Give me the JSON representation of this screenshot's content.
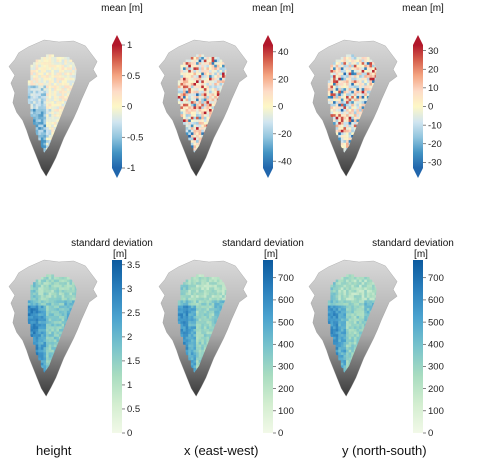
{
  "column_labels": [
    "height",
    "x (east-west)",
    "y (north-south)"
  ],
  "colors": {
    "diverging": [
      "#2166ac",
      "#4393c3",
      "#92c5de",
      "#d1e5f0",
      "#fdf7c6",
      "#fddbc7",
      "#f4a582",
      "#d6604d",
      "#b2182b"
    ],
    "sequential": [
      "#f2f9e8",
      "#d3eed0",
      "#a8dcc0",
      "#78c3cc",
      "#4ba3cf",
      "#2a7fbc",
      "#0c5a9e"
    ],
    "map_background_light": "#d9d9d9",
    "map_background_dark": "#3a3a3a"
  },
  "chart_data": [
    {
      "type": "heatmap",
      "title": "mean [m]",
      "colormap": "diverging",
      "range": [
        -1,
        1
      ],
      "ticks": [
        -1,
        -0.5,
        0,
        0.5,
        1
      ],
      "tick_labels": [
        "-1",
        "-0.5",
        "0",
        "0.5",
        "1"
      ],
      "variable": "height"
    },
    {
      "type": "heatmap",
      "title": "mean [m]",
      "colormap": "diverging",
      "range": [
        -45,
        45
      ],
      "ticks": [
        -40,
        -20,
        0,
        20,
        40
      ],
      "tick_labels": [
        "-40",
        "-20",
        "0",
        "20",
        "40"
      ],
      "variable": "x (east-west)"
    },
    {
      "type": "heatmap",
      "title": "mean [m]",
      "colormap": "diverging",
      "range": [
        -33,
        33
      ],
      "ticks": [
        -30,
        -20,
        -10,
        0,
        10,
        20,
        30
      ],
      "tick_labels": [
        "-30",
        "-20",
        "-10",
        "0",
        "10",
        "20",
        "30"
      ],
      "variable": "y (north-south)"
    },
    {
      "type": "heatmap",
      "title": "standard deviation",
      "title_line2": "[m]",
      "colormap": "sequential",
      "range": [
        0,
        3.6
      ],
      "ticks": [
        0,
        0.5,
        1,
        1.5,
        2,
        2.5,
        3,
        3.5
      ],
      "tick_labels": [
        "0",
        "0.5",
        "1",
        "1.5",
        "2",
        "2.5",
        "3",
        "3.5"
      ],
      "variable": "height"
    },
    {
      "type": "heatmap",
      "title": "standard deviation",
      "title_line2": "[m]",
      "colormap": "sequential",
      "range": [
        0,
        780
      ],
      "ticks": [
        0,
        100,
        200,
        300,
        400,
        500,
        600,
        700
      ],
      "tick_labels": [
        "0",
        "100",
        "200",
        "300",
        "400",
        "500",
        "600",
        "700"
      ],
      "variable": "x (east-west)"
    },
    {
      "type": "heatmap",
      "title": "standard deviation",
      "title_line2": "[m]",
      "colormap": "sequential",
      "range": [
        0,
        780
      ],
      "ticks": [
        0,
        100,
        200,
        300,
        400,
        500,
        600,
        700
      ],
      "tick_labels": [
        "0",
        "100",
        "200",
        "300",
        "400",
        "500",
        "600",
        "700"
      ],
      "variable": "y (north-south)"
    }
  ]
}
